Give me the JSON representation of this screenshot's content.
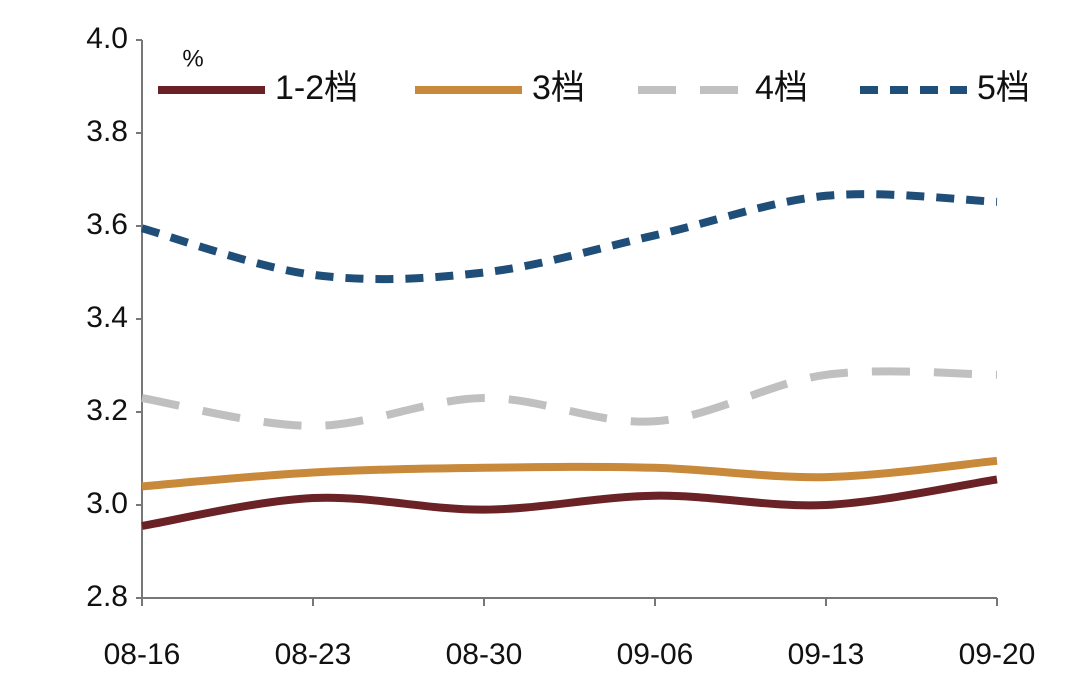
{
  "chart_data": {
    "type": "line",
    "smooth": true,
    "y_unit": "%",
    "legend": "top",
    "categories": [
      "08-16",
      "08-23",
      "08-30",
      "09-06",
      "09-13",
      "09-20"
    ],
    "series": [
      {
        "name": "1-2档",
        "color": "#6b2226",
        "line_style": "solid",
        "values": [
          2.955,
          3.015,
          2.99,
          3.02,
          3.0,
          3.055
        ]
      },
      {
        "name": "3档",
        "color": "#c8893a",
        "line_style": "solid",
        "values": [
          3.04,
          3.07,
          3.08,
          3.08,
          3.06,
          3.095
        ]
      },
      {
        "name": "4档",
        "color": "#c0c0c0",
        "line_style": "dashed",
        "values": [
          3.23,
          3.17,
          3.23,
          3.18,
          3.28,
          3.28
        ]
      },
      {
        "name": "5档",
        "color": "#1f4e79",
        "line_style": "dotted",
        "values": [
          3.595,
          3.495,
          3.5,
          3.58,
          3.665,
          3.652
        ]
      }
    ],
    "ylim": [
      2.8,
      4.0
    ],
    "yticks": [
      2.8,
      {
        "value": 3,
        "label": "3.0"
      },
      3.2,
      3.4,
      3.6,
      3.8,
      {
        "value": 4,
        "label": "4.0"
      }
    ]
  }
}
